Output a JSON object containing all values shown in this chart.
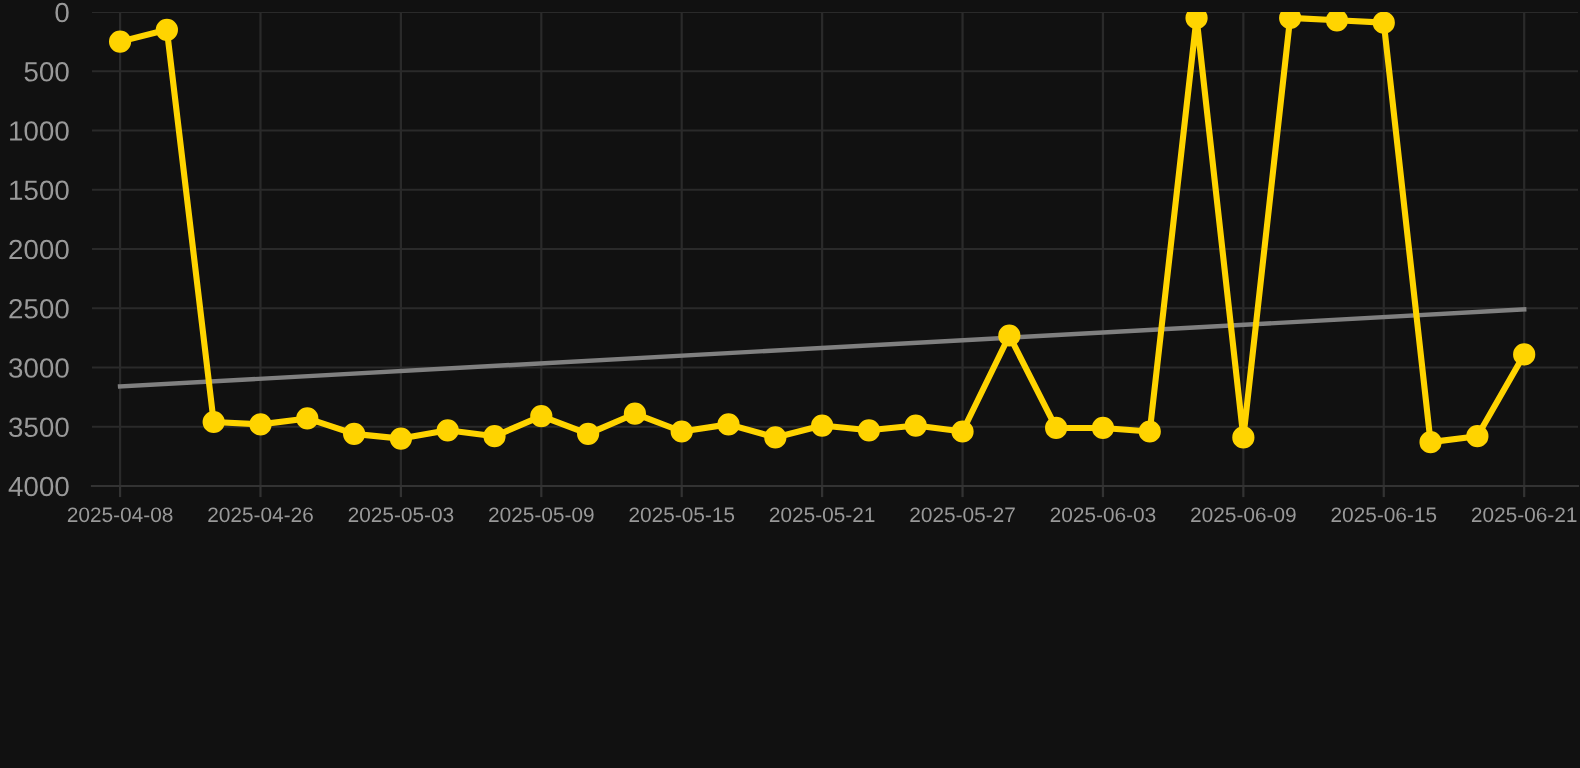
{
  "chart_data": {
    "type": "line",
    "categories": [
      "2025-04-08",
      null,
      null,
      "2025-04-26",
      null,
      null,
      "2025-05-03",
      null,
      null,
      "2025-05-09",
      null,
      null,
      "2025-05-15",
      null,
      null,
      "2025-05-21",
      null,
      null,
      "2025-05-27",
      null,
      null,
      "2025-06-03",
      null,
      null,
      "2025-06-09",
      null,
      null,
      "2025-06-15",
      null,
      null,
      "2025-06-21"
    ],
    "series": [
      {
        "color": "#ffd400",
        "marker": "circle",
        "values": [
          250,
          150,
          3460,
          3480,
          3430,
          3560,
          3600,
          3530,
          3580,
          3410,
          3560,
          3390,
          3540,
          3480,
          3590,
          3490,
          3530,
          3490,
          3540,
          2730,
          3510,
          3510,
          3540,
          50,
          3590,
          50,
          70,
          90,
          3630,
          3580,
          2890
        ]
      },
      {
        "color": "#808080",
        "marker": "none",
        "values": [
          3160,
          null,
          null,
          null,
          null,
          null,
          null,
          null,
          null,
          null,
          null,
          null,
          null,
          null,
          null,
          null,
          null,
          null,
          null,
          null,
          null,
          null,
          null,
          null,
          null,
          null,
          null,
          null,
          null,
          null,
          2510
        ]
      }
    ],
    "ylim": [
      4000,
      0
    ],
    "yticks": [
      0,
      500,
      1000,
      1500,
      2000,
      2500,
      3000,
      3500,
      4000
    ],
    "grid": true
  }
}
